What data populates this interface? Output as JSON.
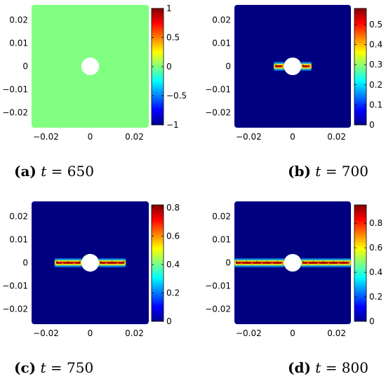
{
  "chart_data": [
    {
      "type": "heatmap",
      "panel": "a",
      "caption": {
        "label": "(a)",
        "var": "t",
        "value": "= 650"
      },
      "xlim": [
        -0.0265,
        0.0265
      ],
      "ylim": [
        -0.0265,
        0.0265
      ],
      "xticks": [
        -0.02,
        0,
        0.02
      ],
      "xtick_labels": [
        "−0.02",
        "0",
        "0.02"
      ],
      "yticks": [
        0.02,
        0.01,
        0,
        -0.01,
        -0.02
      ],
      "ytick_labels": [
        "0.02",
        "0.01",
        "0",
        "−0.01",
        "−0.02"
      ],
      "colorbar": {
        "min": -1,
        "max": 1,
        "ticks": [
          1,
          0.5,
          0,
          -0.5,
          -1
        ],
        "tick_labels": [
          "1",
          "0.5",
          "0",
          "−0.5",
          "−1"
        ]
      },
      "background_value": 0,
      "hole": {
        "x": 0,
        "y": 0,
        "radius": 0.004
      },
      "crack": []
    },
    {
      "type": "heatmap",
      "panel": "b",
      "caption": {
        "label": "(b)",
        "var": "t",
        "value": "= 700"
      },
      "xlim": [
        -0.0265,
        0.0265
      ],
      "ylim": [
        -0.0265,
        0.0265
      ],
      "xticks": [
        -0.02,
        0,
        0.02
      ],
      "xtick_labels": [
        "−0.02",
        "0",
        "0.02"
      ],
      "yticks": [
        0.02,
        0.01,
        0,
        -0.01,
        -0.02
      ],
      "ytick_labels": [
        "0.02",
        "0.01",
        "0",
        "−0.01",
        "−0.02"
      ],
      "colorbar": {
        "min": 0,
        "max": 0.58,
        "ticks": [
          0.5,
          0.4,
          0.3,
          0.2,
          0.1,
          0
        ],
        "tick_labels": [
          "0.5",
          "0.4",
          "0.3",
          "0.2",
          "0.1",
          "0"
        ]
      },
      "background_value": 0,
      "hole": {
        "x": 0,
        "y": 0,
        "radius": 0.004
      },
      "crack": [
        {
          "x_start": -0.0085,
          "x_end": -0.0038,
          "y": 0,
          "peak": 0.58
        },
        {
          "x_start": 0.0038,
          "x_end": 0.0085,
          "y": 0,
          "peak": 0.58
        }
      ]
    },
    {
      "type": "heatmap",
      "panel": "c",
      "caption": {
        "label": "(c)",
        "var": "t",
        "value": "= 750"
      },
      "xlim": [
        -0.0265,
        0.0265
      ],
      "ylim": [
        -0.0265,
        0.0265
      ],
      "xticks": [
        -0.02,
        0,
        0.02
      ],
      "xtick_labels": [
        "−0.02",
        "0",
        "0.02"
      ],
      "yticks": [
        0.02,
        0.01,
        0,
        -0.01,
        -0.02
      ],
      "ytick_labels": [
        "0.02",
        "0.01",
        "0",
        "−0.01",
        "−0.02"
      ],
      "colorbar": {
        "min": 0,
        "max": 0.82,
        "ticks": [
          0.8,
          0.6,
          0.4,
          0.2,
          0
        ],
        "tick_labels": [
          "0.8",
          "0.6",
          "0.4",
          "0.2",
          "0"
        ]
      },
      "background_value": 0,
      "hole": {
        "x": 0,
        "y": 0,
        "radius": 0.004
      },
      "crack": [
        {
          "x_start": -0.016,
          "x_end": -0.0038,
          "y": 0,
          "peak": 0.82
        },
        {
          "x_start": 0.0038,
          "x_end": 0.016,
          "y": 0,
          "peak": 0.82
        }
      ]
    },
    {
      "type": "heatmap",
      "panel": "d",
      "caption": {
        "label": "(d)",
        "var": "t",
        "value": "= 800"
      },
      "xlim": [
        -0.0265,
        0.0265
      ],
      "ylim": [
        -0.0265,
        0.0265
      ],
      "xticks": [
        -0.02,
        0,
        0.02
      ],
      "xtick_labels": [
        "−0.02",
        "0",
        "0.02"
      ],
      "yticks": [
        0.02,
        0.01,
        0,
        -0.01,
        -0.02
      ],
      "ytick_labels": [
        "0.02",
        "0.01",
        "0",
        "−0.01",
        "−0.02"
      ],
      "colorbar": {
        "min": 0,
        "max": 0.95,
        "ticks": [
          0.8,
          0.6,
          0.4,
          0.2,
          0
        ],
        "tick_labels": [
          "0.8",
          "0.6",
          "0.4",
          "0.2",
          "0"
        ]
      },
      "background_value": 0,
      "hole": {
        "x": 0,
        "y": 0,
        "radius": 0.004
      },
      "crack": [
        {
          "x_start": -0.0265,
          "x_end": -0.0038,
          "y": 0,
          "peak": 0.95
        },
        {
          "x_start": 0.0038,
          "x_end": 0.0265,
          "y": 0,
          "peak": 0.95
        }
      ]
    }
  ]
}
